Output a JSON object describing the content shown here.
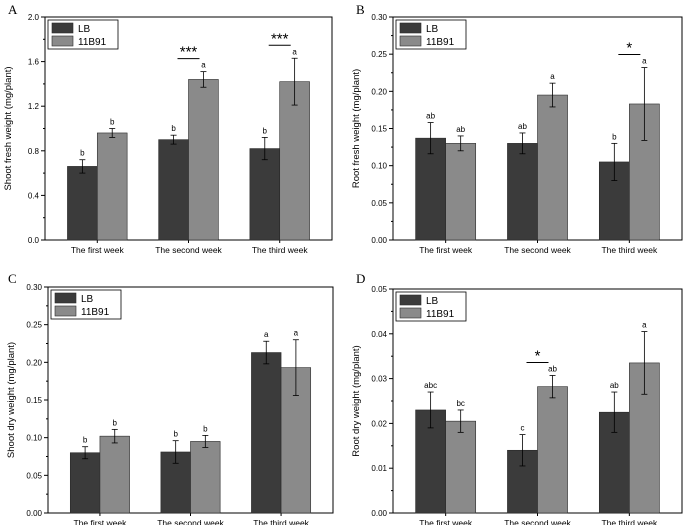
{
  "chart_data": [
    {
      "type": "bar",
      "panel": "A",
      "ylabel": "Shoot fresh weight (mg/plant)",
      "xlabel": "",
      "categories": [
        "The first week",
        "The second week",
        "The third week"
      ],
      "ylim": [
        0,
        2.0
      ],
      "yticks": [
        "0.0",
        "0.4",
        "0.8",
        "1.2",
        "1.6",
        "2.0"
      ],
      "series": [
        {
          "name": "LB",
          "color": "#3b3b3b",
          "values": [
            0.66,
            0.9,
            0.82
          ],
          "errors": [
            0.06,
            0.04,
            0.1
          ],
          "letters": [
            "b",
            "b",
            "b"
          ]
        },
        {
          "name": "11B91",
          "color": "#8a8a8a",
          "values": [
            0.96,
            1.44,
            1.42
          ],
          "errors": [
            0.04,
            0.07,
            0.21
          ],
          "letters": [
            "b",
            "a",
            "a"
          ]
        }
      ],
      "significance": [
        "",
        "***",
        "***"
      ],
      "legend": "top-left"
    },
    {
      "type": "bar",
      "panel": "B",
      "ylabel": "Root fresh weight (mg/plant)",
      "xlabel": "",
      "categories": [
        "The first week",
        "The second week",
        "The third week"
      ],
      "ylim": [
        0,
        0.3
      ],
      "yticks": [
        "0.00",
        "0.05",
        "0.10",
        "0.15",
        "0.20",
        "0.25",
        "0.30"
      ],
      "series": [
        {
          "name": "LB",
          "color": "#3b3b3b",
          "values": [
            0.137,
            0.13,
            0.105
          ],
          "errors": [
            0.021,
            0.014,
            0.025
          ],
          "letters": [
            "ab",
            "ab",
            "b"
          ]
        },
        {
          "name": "11B91",
          "color": "#8a8a8a",
          "values": [
            0.13,
            0.195,
            0.183
          ],
          "errors": [
            0.01,
            0.016,
            0.049
          ],
          "letters": [
            "ab",
            "a",
            "a"
          ]
        }
      ],
      "significance": [
        "",
        "",
        "*"
      ],
      "legend": "top-left"
    },
    {
      "type": "bar",
      "panel": "C",
      "ylabel": "Shoot dry weight (mg/plant)",
      "xlabel": "",
      "categories": [
        "The first week",
        "The second week",
        "The third week"
      ],
      "ylim": [
        0,
        0.3
      ],
      "yticks": [
        "0.00",
        "0.05",
        "0.10",
        "0.15",
        "0.20",
        "0.25",
        "0.30"
      ],
      "series": [
        {
          "name": "LB",
          "color": "#3b3b3b",
          "values": [
            0.08,
            0.081,
            0.213
          ],
          "errors": [
            0.008,
            0.015,
            0.015
          ],
          "letters": [
            "b",
            "b",
            "a"
          ]
        },
        {
          "name": "11B91",
          "color": "#8a8a8a",
          "values": [
            0.102,
            0.095,
            0.193
          ],
          "errors": [
            0.009,
            0.008,
            0.037
          ],
          "letters": [
            "b",
            "b",
            "a"
          ]
        }
      ],
      "significance": [
        "",
        "",
        ""
      ],
      "legend": "top-left"
    },
    {
      "type": "bar",
      "panel": "D",
      "ylabel": "Root dry weight (mg/plant)",
      "xlabel": "",
      "categories": [
        "The first week",
        "The second week",
        "The third week"
      ],
      "ylim": [
        0,
        0.05
      ],
      "yticks": [
        "0.00",
        "0.01",
        "0.02",
        "0.03",
        "0.04",
        "0.05"
      ],
      "series": [
        {
          "name": "LB",
          "color": "#3b3b3b",
          "values": [
            0.023,
            0.014,
            0.0225
          ],
          "errors": [
            0.004,
            0.0035,
            0.0045
          ],
          "letters": [
            "abc",
            "c",
            "ab"
          ]
        },
        {
          "name": "11B91",
          "color": "#8a8a8a",
          "values": [
            0.0205,
            0.0282,
            0.0335
          ],
          "errors": [
            0.0025,
            0.0025,
            0.007
          ],
          "letters": [
            "bc",
            "ab",
            "a"
          ]
        }
      ],
      "significance": [
        "",
        "*",
        ""
      ],
      "legend": "top-left"
    }
  ]
}
